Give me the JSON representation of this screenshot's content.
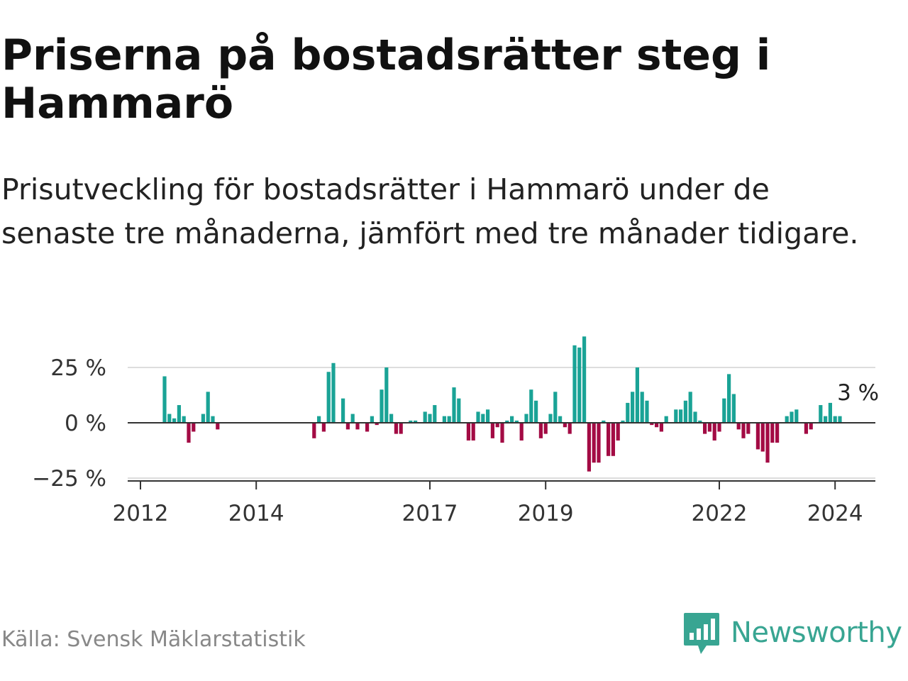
{
  "title": "Priserna på bostadsrätter steg i Hammarö",
  "subtitle": "Prisutveckling för bostadsrätter i Hammarö under de senaste tre månaderna, jämfört med tre månader tidigare.",
  "source": "Källa: Svensk Mäklarstatistik",
  "brand": {
    "name": "Newsworthy",
    "color": "#38a592",
    "icon": "newsworthy-logo-icon"
  },
  "chart_data": {
    "type": "bar",
    "title": "Priserna på bostadsrätter steg i Hammarö",
    "xlabel": "",
    "ylabel": "",
    "ylim": [
      -25,
      40
    ],
    "yticks": [
      25,
      0,
      -25
    ],
    "ytick_labels": [
      "25 %",
      "0 %",
      "−25 %"
    ],
    "xticks": [
      {
        "label": "2012",
        "index": 0
      },
      {
        "label": "2014",
        "index": 24
      },
      {
        "label": "2017",
        "index": 60
      },
      {
        "label": "2019",
        "index": 84
      },
      {
        "label": "2022",
        "index": 120
      },
      {
        "label": "2024",
        "index": 144
      }
    ],
    "start": "2012-01",
    "colors": {
      "positive": "#1aa396",
      "negative": "#a30b44",
      "grid": "#dddddd",
      "axis": "#333333"
    },
    "annotation": {
      "label": "3 %",
      "index": 147
    },
    "values": [
      0,
      0,
      0,
      0,
      0,
      21,
      4,
      2,
      8,
      3,
      -9,
      -4,
      0,
      4,
      14,
      3,
      -3,
      0,
      0,
      0,
      0,
      0,
      0,
      0,
      0,
      0,
      0,
      0,
      0,
      0,
      0,
      0,
      0,
      0,
      0,
      0,
      -7,
      3,
      -4,
      23,
      27,
      0,
      11,
      -3,
      4,
      -3,
      0,
      -4,
      3,
      -1,
      15,
      25,
      4,
      -5,
      -5,
      0,
      1,
      1,
      0,
      5,
      4,
      8,
      0,
      3,
      3,
      16,
      11,
      0,
      -8,
      -8,
      5,
      4,
      6,
      -7,
      -2,
      -9,
      1,
      3,
      1,
      -8,
      4,
      15,
      10,
      -7,
      -5,
      4,
      14,
      3,
      -2,
      -5,
      35,
      34,
      39,
      -22,
      -18,
      -18,
      1,
      -15,
      -15,
      -8,
      1,
      9,
      14,
      25,
      14,
      10,
      -1,
      -2,
      -4,
      3,
      0,
      6,
      6,
      10,
      14,
      5,
      1,
      -5,
      -4,
      -8,
      -4,
      11,
      22,
      13,
      -3,
      -7,
      -5,
      0,
      -12,
      -13,
      -18,
      -9,
      -9,
      0,
      3,
      5,
      6,
      0,
      -5,
      -3,
      0,
      8,
      3,
      9,
      3,
      3
    ]
  }
}
